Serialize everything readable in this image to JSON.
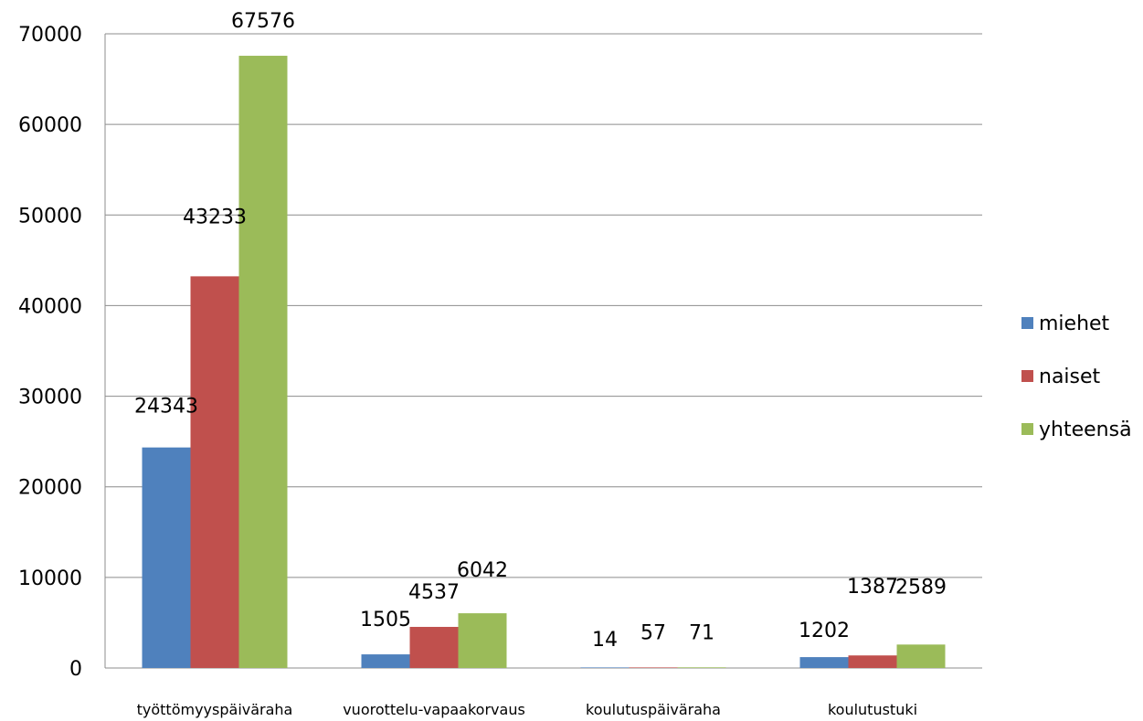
{
  "chart_data": {
    "type": "bar",
    "title": "",
    "xlabel": "",
    "ylabel": "",
    "categories": [
      "työttömyyspäiväraha",
      "vuorottelu-vapaakorvaus",
      "koulutuspäiväraha",
      "koulutustuki"
    ],
    "series": [
      {
        "name": "miehet",
        "values": [
          24343,
          1505,
          14,
          1202
        ],
        "color": "#4F81BD"
      },
      {
        "name": "naiset",
        "values": [
          43233,
          4537,
          57,
          1387
        ],
        "color": "#C0504D"
      },
      {
        "name": "yhteensä",
        "values": [
          67576,
          6042,
          71,
          2589
        ],
        "color": "#9BBB59"
      }
    ],
    "ylim": [
      0,
      70000
    ],
    "yticks": [
      0,
      10000,
      20000,
      30000,
      40000,
      50000,
      60000,
      70000
    ],
    "grid": true,
    "legend": "right",
    "data_labels": true
  }
}
